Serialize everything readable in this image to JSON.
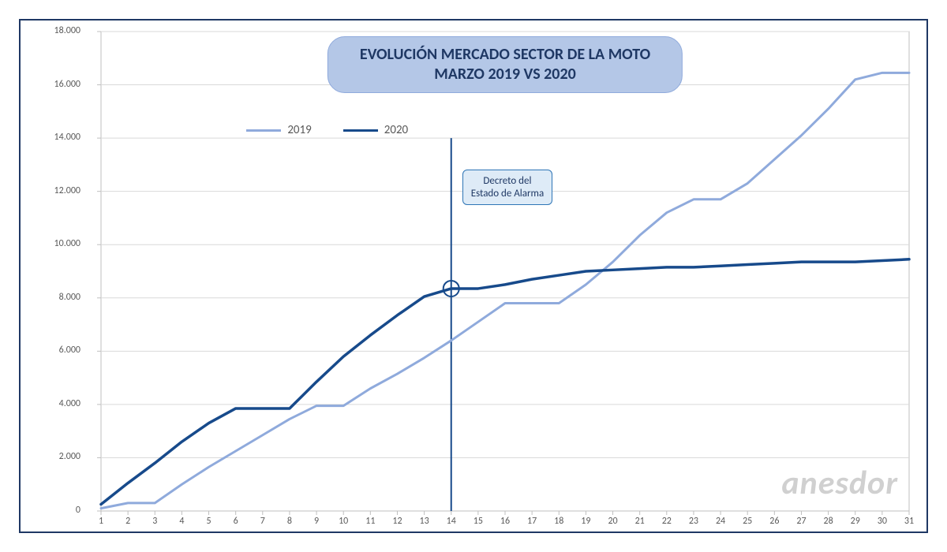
{
  "chart": {
    "type": "line",
    "title_line1": "EVOLUCIÓN MERCADO SECTOR DE LA MOTO",
    "title_line2": "MARZO 2019 VS 2020",
    "title_fontsize": 20,
    "title_color": "#1f3864",
    "title_bg": "#b4c7e7",
    "title_border": "#8faadc",
    "background_color": "#ffffff",
    "outer_border_color": "#1f3864",
    "plot_border_color": "#bfbfbf",
    "grid_color": "#d9d9d9",
    "axis_label_color": "#595959",
    "axis_label_fontsize": 12,
    "x_categories": [
      "1",
      "2",
      "3",
      "4",
      "5",
      "6",
      "7",
      "8",
      "9",
      "10",
      "11",
      "12",
      "13",
      "14",
      "15",
      "16",
      "17",
      "18",
      "19",
      "20",
      "21",
      "22",
      "23",
      "24",
      "25",
      "26",
      "27",
      "28",
      "29",
      "30",
      "31"
    ],
    "ylim": [
      0,
      18000
    ],
    "ytick_step": 2000,
    "ytick_labels": [
      "0",
      "2.000",
      "4.000",
      "6.000",
      "8.000",
      "10.000",
      "12.000",
      "14.000",
      "16.000",
      "18.000"
    ],
    "series": [
      {
        "name": "2019",
        "color": "#8faadc",
        "line_width": 3,
        "values": [
          100,
          300,
          300,
          1000,
          1650,
          2250,
          2850,
          3450,
          3950,
          3950,
          4600,
          5150,
          5750,
          6400,
          7100,
          7800,
          7800,
          7800,
          8500,
          9350,
          10350,
          11200,
          11700,
          11700,
          12300,
          13200,
          14100,
          15100,
          16200,
          16450,
          16450
        ]
      },
      {
        "name": "2020",
        "color": "#174a8b",
        "line_width": 3.5,
        "values": [
          250,
          1050,
          1800,
          2600,
          3300,
          3850,
          3850,
          3850,
          4850,
          5800,
          6600,
          7350,
          8050,
          8350,
          8350,
          8500,
          8700,
          8850,
          9000,
          9050,
          9100,
          9150,
          9150,
          9200,
          9250,
          9300,
          9350,
          9350,
          9350,
          9400,
          9450
        ]
      }
    ],
    "legend": {
      "fontsize": 15,
      "left_percent": 18,
      "items": [
        "2019",
        "2020"
      ]
    },
    "annotation": {
      "x_index": 13,
      "marker": {
        "shape": "circle",
        "radius": 10,
        "stroke": "#174a8b",
        "stroke_width": 2,
        "fill": "none"
      },
      "vline": {
        "color": "#174a8b",
        "width": 2,
        "y_from": 0,
        "y_to": 14000
      },
      "label_line1": "Decreto del",
      "label_line2": "Estado de Alarma",
      "label_bg": "#deebf7",
      "label_border": "#2e75b6",
      "label_color": "#1f3864",
      "label_fontsize": 13
    },
    "watermark": {
      "text": "anesdor",
      "color": "#d0d0d0",
      "fontsize": 42
    }
  }
}
